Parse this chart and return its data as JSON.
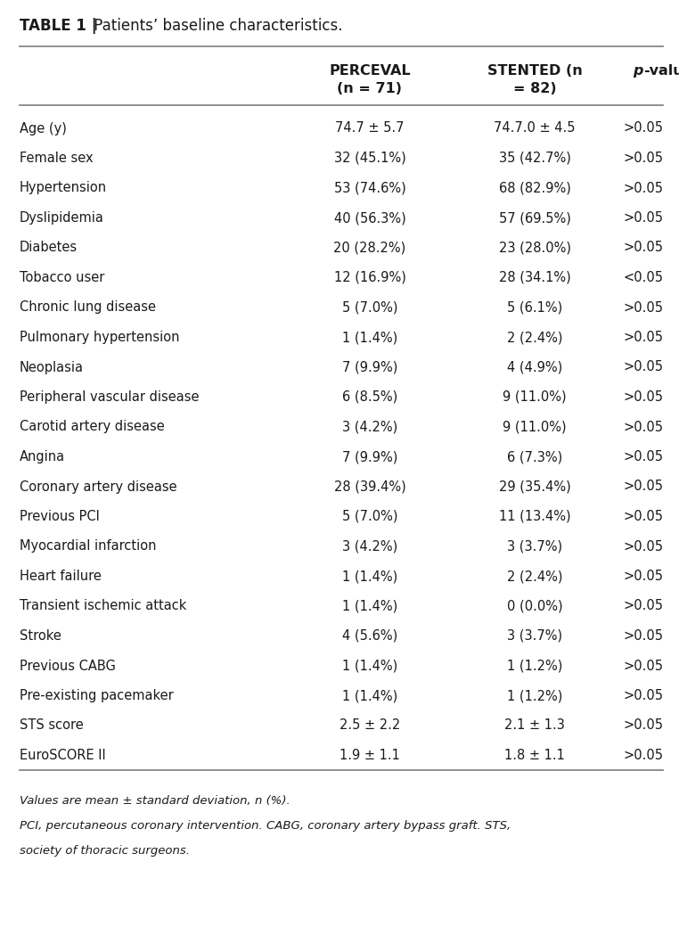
{
  "title_bold": "TABLE 1 |",
  "title_normal": " Patients’ baseline characteristics.",
  "col_headers_line1": [
    "",
    "PERCEVAL",
    "STENTED (n",
    "p-value"
  ],
  "col_headers_line2": [
    "",
    "(n = 71)",
    "= 82)",
    ""
  ],
  "rows": [
    [
      "Age (y)",
      "74.7 ± 5.7",
      "74.7.0 ± 4.5",
      ">0.05"
    ],
    [
      "Female sex",
      "32 (45.1%)",
      "35 (42.7%)",
      ">0.05"
    ],
    [
      "Hypertension",
      "53 (74.6%)",
      "68 (82.9%)",
      ">0.05"
    ],
    [
      "Dyslipidemia",
      "40 (56.3%)",
      "57 (69.5%)",
      ">0.05"
    ],
    [
      "Diabetes",
      "20 (28.2%)",
      "23 (28.0%)",
      ">0.05"
    ],
    [
      "Tobacco user",
      "12 (16.9%)",
      "28 (34.1%)",
      "<0.05"
    ],
    [
      "Chronic lung disease",
      "5 (7.0%)",
      "5 (6.1%)",
      ">0.05"
    ],
    [
      "Pulmonary hypertension",
      "1 (1.4%)",
      "2 (2.4%)",
      ">0.05"
    ],
    [
      "Neoplasia",
      "7 (9.9%)",
      "4 (4.9%)",
      ">0.05"
    ],
    [
      "Peripheral vascular disease",
      "6 (8.5%)",
      "9 (11.0%)",
      ">0.05"
    ],
    [
      "Carotid artery disease",
      "3 (4.2%)",
      "9 (11.0%)",
      ">0.05"
    ],
    [
      "Angina",
      "7 (9.9%)",
      "6 (7.3%)",
      ">0.05"
    ],
    [
      "Coronary artery disease",
      "28 (39.4%)",
      "29 (35.4%)",
      ">0.05"
    ],
    [
      "Previous PCI",
      "5 (7.0%)",
      "11 (13.4%)",
      ">0.05"
    ],
    [
      "Myocardial infarction",
      "3 (4.2%)",
      "3 (3.7%)",
      ">0.05"
    ],
    [
      "Heart failure",
      "1 (1.4%)",
      "2 (2.4%)",
      ">0.05"
    ],
    [
      "Transient ischemic attack",
      "1 (1.4%)",
      "0 (0.0%)",
      ">0.05"
    ],
    [
      "Stroke",
      "4 (5.6%)",
      "3 (3.7%)",
      ">0.05"
    ],
    [
      "Previous CABG",
      "1 (1.4%)",
      "1 (1.2%)",
      ">0.05"
    ],
    [
      "Pre-existing pacemaker",
      "1 (1.4%)",
      "1 (1.2%)",
      ">0.05"
    ],
    [
      "STS score",
      "2.5 ± 2.2",
      "2.1 ± 1.3",
      ">0.05"
    ],
    [
      "EuroSCORE II",
      "1.9 ± 1.1",
      "1.8 ± 1.1",
      ">0.05"
    ]
  ],
  "footnote1": "Values are mean ± standard deviation, n (%).",
  "footnote2": "PCI, percutaneous coronary intervention. CABG, coronary artery bypass graft. STS,",
  "footnote3": "society of thoracic surgeons.",
  "bg_color": "#ffffff",
  "text_color": "#1a1a1a",
  "line_color": "#888888",
  "fig_width": 7.62,
  "fig_height": 10.4,
  "dpi": 100
}
